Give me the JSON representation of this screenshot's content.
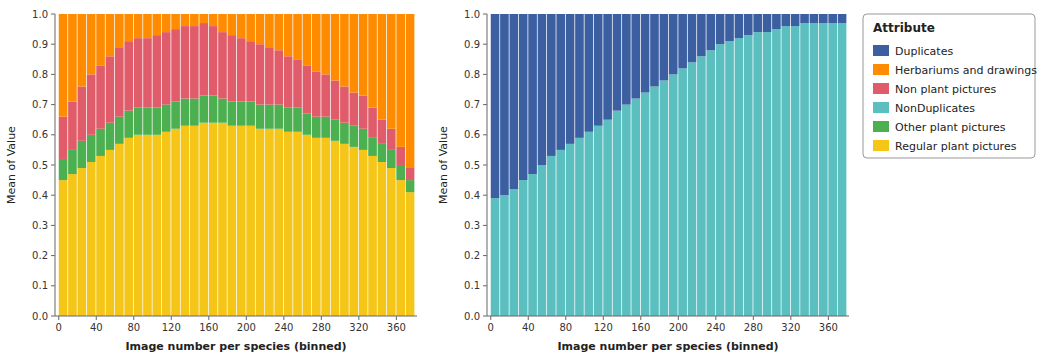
{
  "chart_data": [
    {
      "type": "bar",
      "stacked": true,
      "x_label": "Image number per species (binned)",
      "y_label": "Mean of Value",
      "x": [
        0,
        10,
        20,
        30,
        40,
        50,
        60,
        70,
        80,
        90,
        100,
        110,
        120,
        130,
        140,
        150,
        160,
        170,
        180,
        190,
        200,
        210,
        220,
        230,
        240,
        250,
        260,
        270,
        280,
        290,
        300,
        310,
        320,
        330,
        340,
        350,
        360,
        370
      ],
      "xlim": [
        -4,
        382
      ],
      "xticks": [
        0,
        40,
        80,
        120,
        160,
        200,
        240,
        280,
        320,
        360
      ],
      "ylim": [
        0.0,
        1.0
      ],
      "yticks": [
        {
          "value": 0.0,
          "label": "0.0"
        },
        0.1,
        0.2,
        0.3,
        0.4,
        0.5,
        0.6,
        0.7,
        0.8,
        0.9,
        {
          "value": 1.0,
          "label": "1.0"
        }
      ],
      "series": [
        {
          "name": "Regular plant pictures",
          "color": "#F5C518",
          "values": [
            0.45,
            0.47,
            0.49,
            0.51,
            0.53,
            0.55,
            0.57,
            0.59,
            0.6,
            0.6,
            0.6,
            0.61,
            0.62,
            0.63,
            0.63,
            0.64,
            0.64,
            0.64,
            0.63,
            0.63,
            0.63,
            0.62,
            0.62,
            0.62,
            0.61,
            0.61,
            0.6,
            0.59,
            0.59,
            0.58,
            0.57,
            0.56,
            0.55,
            0.53,
            0.51,
            0.49,
            0.45,
            0.41
          ]
        },
        {
          "name": "Other plant pictures",
          "color": "#4CAF50",
          "values": [
            0.07,
            0.08,
            0.09,
            0.09,
            0.09,
            0.09,
            0.09,
            0.09,
            0.09,
            0.09,
            0.09,
            0.09,
            0.09,
            0.09,
            0.09,
            0.09,
            0.09,
            0.08,
            0.08,
            0.08,
            0.08,
            0.08,
            0.08,
            0.08,
            0.08,
            0.08,
            0.07,
            0.07,
            0.07,
            0.07,
            0.07,
            0.07,
            0.07,
            0.06,
            0.06,
            0.06,
            0.05,
            0.04
          ]
        },
        {
          "name": "Non plant pictures",
          "color": "#E05C6A",
          "values": [
            0.14,
            0.16,
            0.18,
            0.2,
            0.21,
            0.22,
            0.23,
            0.23,
            0.23,
            0.23,
            0.24,
            0.24,
            0.24,
            0.24,
            0.24,
            0.24,
            0.23,
            0.22,
            0.22,
            0.21,
            0.2,
            0.2,
            0.19,
            0.18,
            0.17,
            0.16,
            0.16,
            0.15,
            0.14,
            0.13,
            0.12,
            0.11,
            0.11,
            0.1,
            0.08,
            0.07,
            0.06,
            0.04
          ]
        },
        {
          "name": "Herbariums and drawings",
          "color": "#FF8C00",
          "values": [
            0.34,
            0.29,
            0.24,
            0.2,
            0.17,
            0.14,
            0.11,
            0.09,
            0.08,
            0.08,
            0.07,
            0.06,
            0.05,
            0.04,
            0.04,
            0.03,
            0.04,
            0.06,
            0.07,
            0.08,
            0.09,
            0.1,
            0.11,
            0.12,
            0.14,
            0.15,
            0.17,
            0.19,
            0.2,
            0.22,
            0.24,
            0.26,
            0.27,
            0.31,
            0.35,
            0.38,
            0.44,
            0.51
          ]
        }
      ]
    },
    {
      "type": "bar",
      "stacked": true,
      "legend": "right",
      "legend_title": "Attribute",
      "x_label": "Image number per species (binned)",
      "y_label": "Mean of Value",
      "x": [
        0,
        10,
        20,
        30,
        40,
        50,
        60,
        70,
        80,
        90,
        100,
        110,
        120,
        130,
        140,
        150,
        160,
        170,
        180,
        190,
        200,
        210,
        220,
        230,
        240,
        250,
        260,
        270,
        280,
        290,
        300,
        310,
        320,
        330,
        340,
        350,
        360,
        370
      ],
      "xlim": [
        -4,
        382
      ],
      "xticks": [
        0,
        40,
        80,
        120,
        160,
        200,
        240,
        280,
        320,
        360
      ],
      "ylim": [
        0.0,
        1.0
      ],
      "yticks": [
        {
          "value": 0.0,
          "label": "0.0"
        },
        0.1,
        0.2,
        0.3,
        0.4,
        0.5,
        0.6,
        0.7,
        0.8,
        0.9,
        {
          "value": 1.0,
          "label": "1.0"
        }
      ],
      "series": [
        {
          "name": "NonDuplicates",
          "color": "#5BBFBF",
          "values": [
            0.39,
            0.4,
            0.42,
            0.45,
            0.47,
            0.5,
            0.53,
            0.55,
            0.57,
            0.59,
            0.61,
            0.63,
            0.65,
            0.68,
            0.7,
            0.72,
            0.74,
            0.76,
            0.78,
            0.8,
            0.82,
            0.84,
            0.86,
            0.88,
            0.9,
            0.91,
            0.92,
            0.93,
            0.94,
            0.94,
            0.95,
            0.96,
            0.96,
            0.97,
            0.97,
            0.97,
            0.97,
            0.97
          ]
        },
        {
          "name": "Duplicates",
          "color": "#3B5FA0",
          "values": [
            0.61,
            0.6,
            0.58,
            0.55,
            0.53,
            0.5,
            0.47,
            0.45,
            0.43,
            0.41,
            0.39,
            0.37,
            0.35,
            0.32,
            0.3,
            0.28,
            0.26,
            0.24,
            0.22,
            0.2,
            0.18,
            0.16,
            0.14,
            0.12,
            0.1,
            0.09,
            0.08,
            0.07,
            0.06,
            0.06,
            0.05,
            0.04,
            0.04,
            0.03,
            0.03,
            0.03,
            0.03,
            0.03
          ]
        }
      ]
    }
  ]
}
